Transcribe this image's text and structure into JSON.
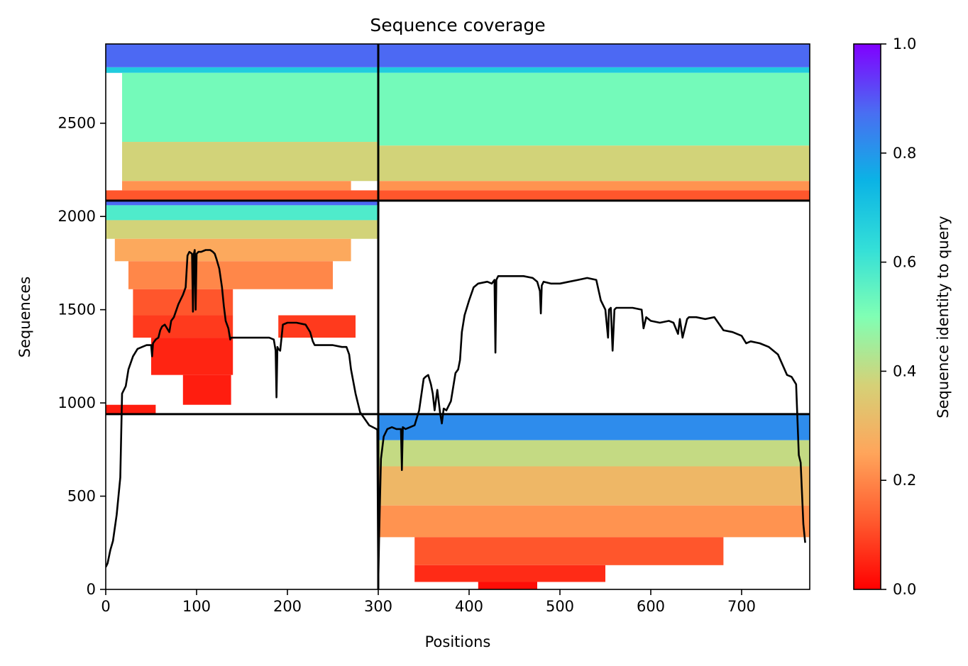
{
  "chart_data": {
    "type": "heatmap",
    "title": "Sequence coverage",
    "xlabel": "Positions",
    "ylabel": "Sequences",
    "xlim": [
      0,
      775
    ],
    "ylim": [
      0,
      2925
    ],
    "xticks": [
      0,
      100,
      200,
      300,
      400,
      500,
      600,
      700
    ],
    "yticks": [
      0,
      500,
      1000,
      1500,
      2000,
      2500
    ],
    "colorbar": {
      "label": "Sequence identity to query",
      "colormap": "rainbow_r",
      "range": [
        0.0,
        1.0
      ],
      "ticks": [
        "0.0",
        "0.2",
        "0.4",
        "0.6",
        "0.8",
        "1.0"
      ]
    },
    "chain_boundaries": {
      "x": [
        300
      ],
      "y": [
        940,
        2085
      ]
    },
    "blocks": [
      {
        "name": "chain1",
        "x": [
          0,
          300
        ],
        "y": [
          2085,
          2925
        ],
        "bands": [
          {
            "y": [
              2800,
              2925
            ],
            "identity": 0.88,
            "x": [
              0,
              300
            ]
          },
          {
            "y": [
              2770,
              2800
            ],
            "identity": 0.68,
            "x": [
              0,
              300
            ]
          },
          {
            "y": [
              2400,
              2770
            ],
            "identity": 0.52,
            "x": [
              18,
              300
            ]
          },
          {
            "y": [
              2190,
              2400
            ],
            "identity": 0.38,
            "x": [
              18,
              300
            ]
          },
          {
            "y": [
              2140,
              2190
            ],
            "identity": 0.22,
            "x": [
              18,
              270
            ]
          },
          {
            "y": [
              2085,
              2140
            ],
            "identity": 0.12,
            "x": [
              0,
              300
            ]
          }
        ]
      },
      {
        "name": "chain1-only",
        "x": [
          0,
          300
        ],
        "y": [
          940,
          2085
        ],
        "bands": [
          {
            "y": [
              2060,
              2085
            ],
            "identity": 0.88,
            "x": [
              0,
              300
            ]
          },
          {
            "y": [
              1980,
              2060
            ],
            "identity": 0.58,
            "x": [
              0,
              300
            ]
          },
          {
            "y": [
              1880,
              1980
            ],
            "identity": 0.38,
            "x": [
              0,
              300
            ]
          },
          {
            "y": [
              1760,
              1880
            ],
            "identity": 0.26,
            "x": [
              10,
              270
            ]
          },
          {
            "y": [
              1610,
              1760
            ],
            "identity": 0.2,
            "x": [
              25,
              250
            ]
          },
          {
            "y": [
              1470,
              1610
            ],
            "identity": 0.12,
            "x": [
              30,
              140
            ]
          },
          {
            "y": [
              1350,
              1470
            ],
            "identity": 0.08,
            "x": [
              30,
              140
            ]
          },
          {
            "y": [
              1350,
              1470
            ],
            "identity": 0.08,
            "x": [
              190,
              275
            ]
          },
          {
            "y": [
              1150,
              1350
            ],
            "identity": 0.05,
            "x": [
              50,
              140
            ]
          },
          {
            "y": [
              990,
              1150
            ],
            "identity": 0.04,
            "x": [
              85,
              138
            ]
          },
          {
            "y": [
              945,
              990
            ],
            "identity": 0.04,
            "x": [
              0,
              55
            ]
          }
        ]
      },
      {
        "name": "chain2",
        "x": [
          300,
          775
        ],
        "y": [
          2085,
          2925
        ],
        "bands": [
          {
            "y": [
              2800,
              2925
            ],
            "identity": 0.88,
            "x": [
              300,
              775
            ]
          },
          {
            "y": [
              2770,
              2800
            ],
            "identity": 0.68,
            "x": [
              300,
              775
            ]
          },
          {
            "y": [
              2380,
              2770
            ],
            "identity": 0.52,
            "x": [
              300,
              775
            ]
          },
          {
            "y": [
              2190,
              2380
            ],
            "identity": 0.38,
            "x": [
              300,
              775
            ]
          },
          {
            "y": [
              2140,
              2190
            ],
            "identity": 0.22,
            "x": [
              300,
              775
            ]
          },
          {
            "y": [
              2085,
              2140
            ],
            "identity": 0.12,
            "x": [
              300,
              775
            ]
          }
        ]
      },
      {
        "name": "chain2-only",
        "x": [
          300,
          775
        ],
        "y": [
          0,
          940
        ],
        "bands": [
          {
            "y": [
              800,
              940
            ],
            "identity": 0.82,
            "x": [
              300,
              775
            ]
          },
          {
            "y": [
              660,
              800
            ],
            "identity": 0.4,
            "x": [
              300,
              775
            ]
          },
          {
            "y": [
              450,
              660
            ],
            "identity": 0.3,
            "x": [
              300,
              775
            ]
          },
          {
            "y": [
              280,
              450
            ],
            "identity": 0.22,
            "x": [
              300,
              775
            ]
          },
          {
            "y": [
              130,
              280
            ],
            "identity": 0.12,
            "x": [
              340,
              680
            ]
          },
          {
            "y": [
              40,
              130
            ],
            "identity": 0.06,
            "x": [
              340,
              550
            ]
          },
          {
            "y": [
              0,
              40
            ],
            "identity": 0.02,
            "x": [
              410,
              475
            ]
          }
        ]
      }
    ],
    "coverage_line": {
      "x": [
        0,
        2,
        5,
        8,
        12,
        16,
        18,
        22,
        25,
        30,
        35,
        40,
        45,
        50,
        51,
        52,
        55,
        58,
        60,
        62,
        65,
        70,
        72,
        75,
        80,
        85,
        88,
        90,
        92,
        95,
        96,
        97,
        98,
        99,
        100,
        102,
        105,
        110,
        115,
        118,
        120,
        122,
        125,
        128,
        130,
        132,
        135,
        137,
        138,
        140,
        150,
        160,
        170,
        180,
        185,
        187,
        188,
        189,
        190,
        192,
        195,
        200,
        210,
        220,
        225,
        228,
        230,
        240,
        250,
        260,
        265,
        268,
        270,
        275,
        280,
        290,
        298,
        299,
        300,
        301,
        303,
        306,
        310,
        315,
        320,
        325,
        326,
        327,
        330,
        335,
        340,
        345,
        350,
        352,
        355,
        358,
        360,
        362,
        365,
        368,
        370,
        372,
        375,
        380,
        385,
        388,
        390,
        392,
        395,
        400,
        405,
        410,
        420,
        425,
        428,
        429,
        430,
        432,
        440,
        450,
        460,
        470,
        475,
        478,
        479,
        480,
        482,
        490,
        500,
        510,
        520,
        530,
        540,
        545,
        550,
        553,
        554,
        556,
        558,
        560,
        562,
        565,
        570,
        580,
        590,
        592,
        595,
        600,
        610,
        620,
        625,
        630,
        632,
        635,
        640,
        642,
        645,
        650,
        660,
        670,
        680,
        690,
        700,
        705,
        710,
        720,
        730,
        740,
        750,
        755,
        760,
        763,
        765,
        768,
        770,
        773,
        775
      ],
      "y": [
        120,
        140,
        210,
        260,
        400,
        600,
        1050,
        1090,
        1180,
        1250,
        1290,
        1300,
        1310,
        1310,
        1250,
        1320,
        1340,
        1350,
        1390,
        1410,
        1420,
        1380,
        1440,
        1460,
        1530,
        1580,
        1620,
        1790,
        1810,
        1800,
        1490,
        1800,
        1820,
        1500,
        1800,
        1810,
        1810,
        1820,
        1820,
        1810,
        1800,
        1770,
        1720,
        1620,
        1520,
        1440,
        1400,
        1340,
        1350,
        1350,
        1350,
        1350,
        1350,
        1350,
        1340,
        1280,
        1030,
        1300,
        1290,
        1280,
        1420,
        1430,
        1430,
        1420,
        1380,
        1330,
        1310,
        1310,
        1310,
        1300,
        1300,
        1260,
        1180,
        1050,
        950,
        880,
        860,
        855,
        40,
        300,
        700,
        820,
        860,
        870,
        860,
        860,
        640,
        870,
        860,
        870,
        880,
        960,
        1130,
        1140,
        1150,
        1100,
        1050,
        960,
        1070,
        950,
        890,
        970,
        960,
        1010,
        1160,
        1180,
        1230,
        1380,
        1470,
        1550,
        1620,
        1640,
        1650,
        1640,
        1660,
        1270,
        1660,
        1680,
        1680,
        1680,
        1680,
        1670,
        1650,
        1600,
        1480,
        1630,
        1650,
        1640,
        1640,
        1650,
        1660,
        1670,
        1660,
        1550,
        1500,
        1350,
        1500,
        1510,
        1280,
        1500,
        1510,
        1510,
        1510,
        1510,
        1500,
        1400,
        1460,
        1440,
        1430,
        1440,
        1430,
        1370,
        1450,
        1350,
        1450,
        1460,
        1460,
        1460,
        1450,
        1460,
        1390,
        1380,
        1360,
        1320,
        1330,
        1320,
        1300,
        1260,
        1150,
        1140,
        1100,
        720,
        680,
        350,
        250
      ]
    }
  }
}
